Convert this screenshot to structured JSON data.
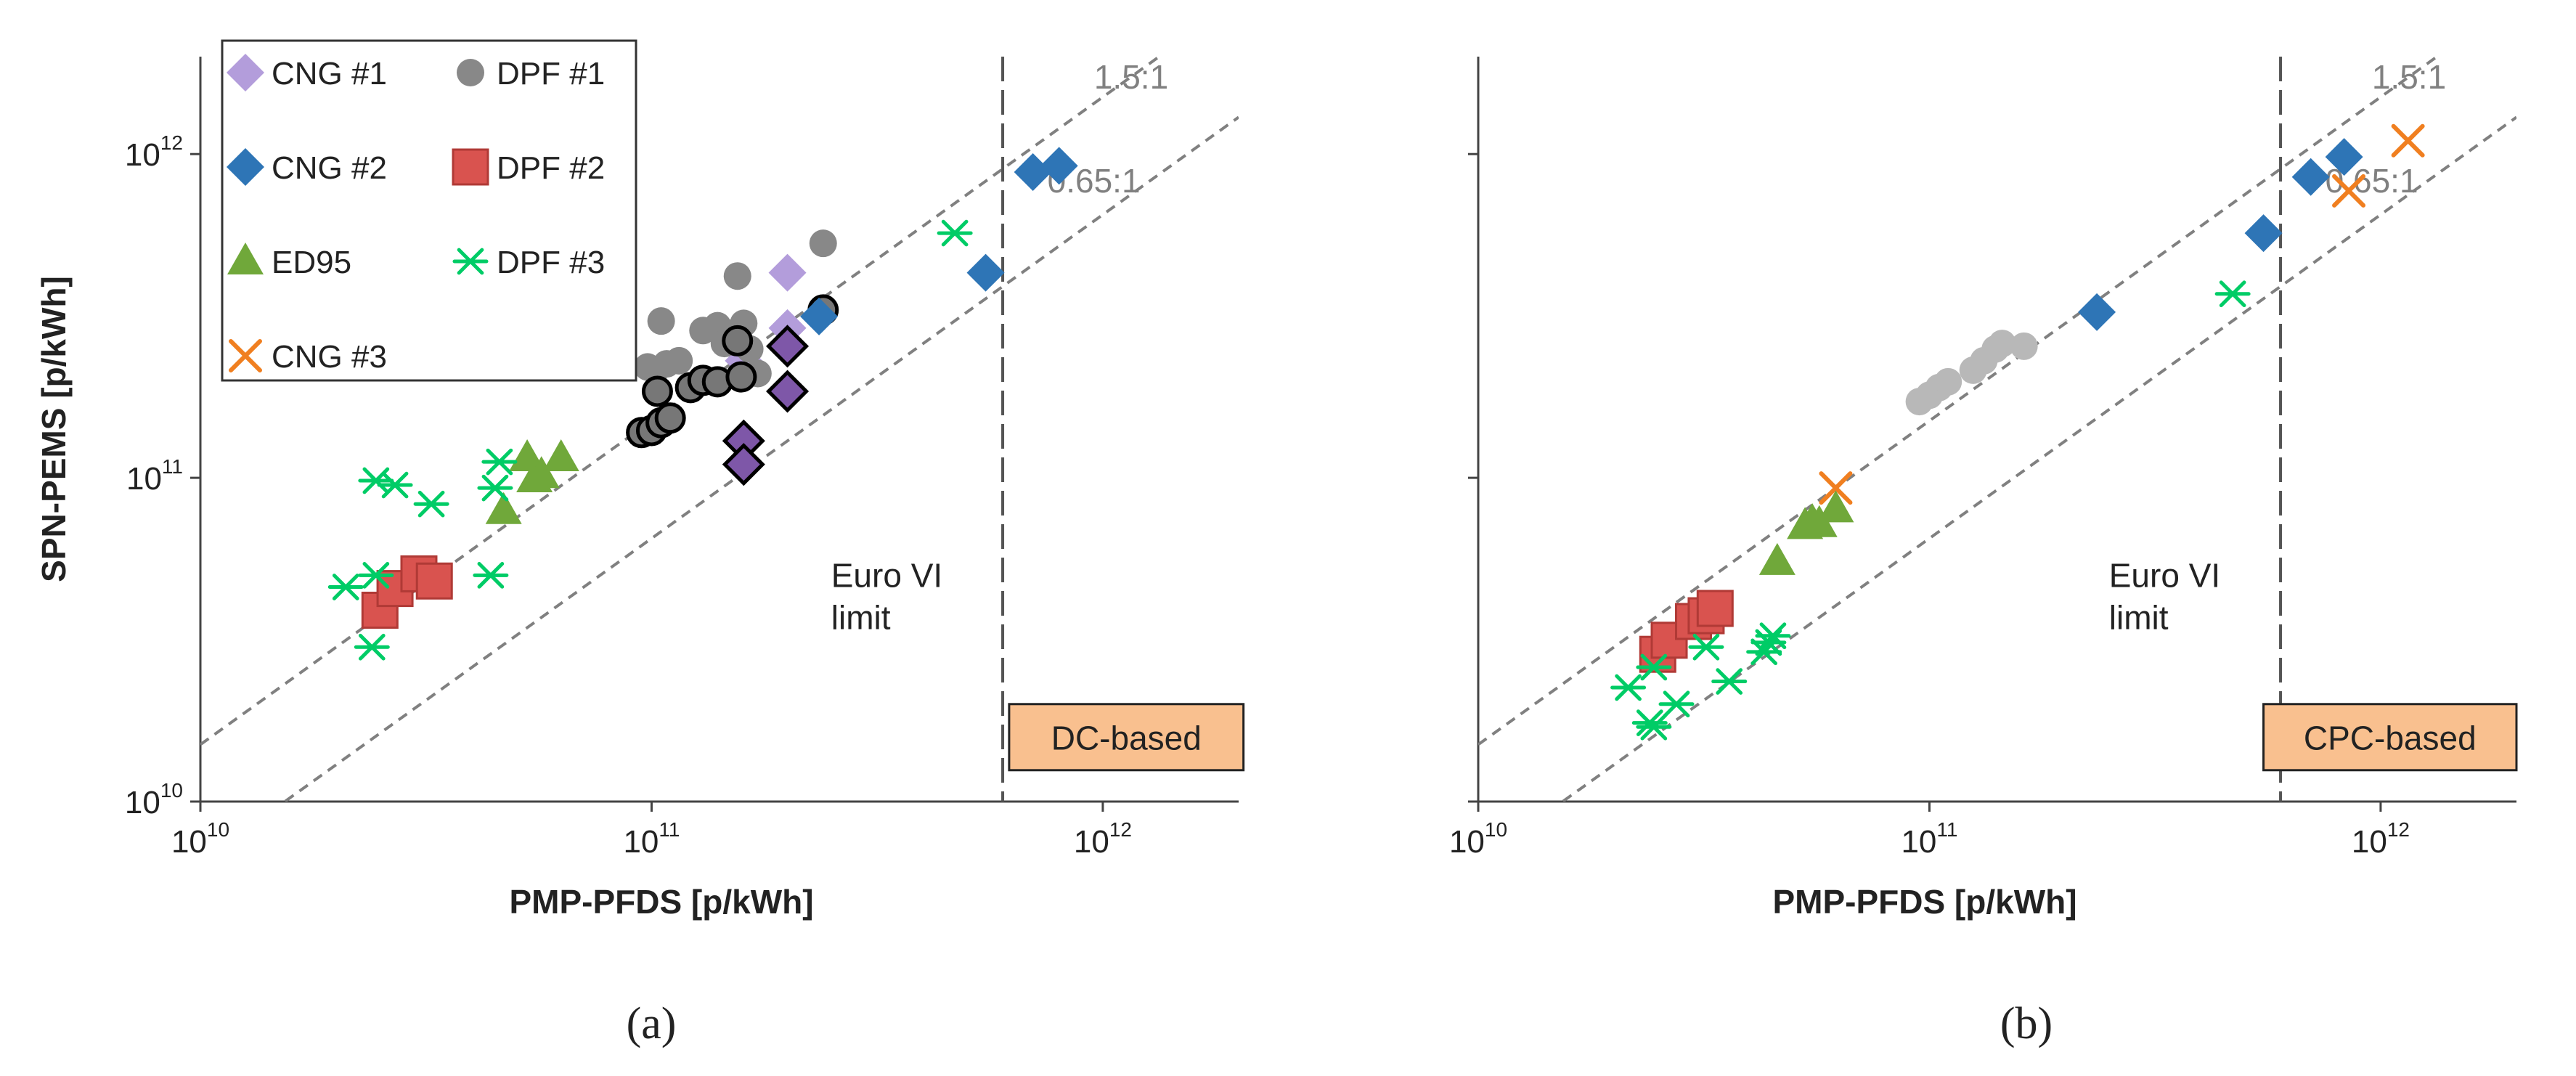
{
  "colors": {
    "cng1": "#b39ddb",
    "cng1_dark": "#7e57a8",
    "dpf1": "#888888",
    "dpf1_dark": "#777777",
    "cng2": "#2e75b6",
    "dpf2": "#d9534f",
    "dpf2_edge": "#b03a36",
    "ed95": "#70a83a",
    "dpf3": "#00cc66",
    "cng3": "#f07f20",
    "guide": "#808080",
    "box_fill": "#f9c08f",
    "axis": "#444444"
  },
  "chart_data": [
    {
      "type": "scatter",
      "panel_label": "(a)",
      "xlabel": "PMP-PFDS [p/kWh]",
      "ylabel": "SPN-PEMS [p/kWh]",
      "scale": "log",
      "xlim": [
        10000000000.0,
        2000000000000.0
      ],
      "ylim": [
        10000000000.0,
        2000000000000.0
      ],
      "x_ticks": [
        {
          "value": 10000000000.0,
          "base": "10",
          "exp": "10"
        },
        {
          "value": 100000000000.0,
          "base": "10",
          "exp": "11"
        },
        {
          "value": 1000000000000.0,
          "base": "10",
          "exp": "12"
        }
      ],
      "y_ticks": [
        {
          "value": 10000000000.0,
          "base": "10",
          "exp": "10"
        },
        {
          "value": 100000000000.0,
          "base": "10",
          "exp": "11"
        },
        {
          "value": 1000000000000.0,
          "base": "10",
          "exp": "12"
        }
      ],
      "ratio_lines": [
        {
          "label": "1.5:1",
          "ratio": 1.5,
          "label_anchor": [
            1950000000000.0,
            1100000000000.0
          ]
        },
        {
          "label": "0.65:1",
          "ratio": 0.65,
          "label_anchor": [
            700000000000.0,
            620000000000.0
          ]
        }
      ],
      "limit_line": {
        "x": 600000000000.0,
        "text_lines": [
          "Euro VI",
          "limit"
        ],
        "text_at": [
          250000000000.0,
          46000000000.0
        ]
      },
      "method_box": {
        "text": "DC-based",
        "from": [
          620000000000.0,
          12500000000.0
        ],
        "to": [
          2050000000000.0,
          20000000000.0
        ]
      },
      "legend": {
        "position": "top-left",
        "entries": [
          {
            "label": "CNG #1",
            "series": "CNG #1",
            "marker": "diamond"
          },
          {
            "label": "DPF #1",
            "series": "DPF #1",
            "marker": "circle"
          },
          {
            "label": "CNG #2",
            "series": "CNG #2",
            "marker": "diamond"
          },
          {
            "label": "DPF #2",
            "series": "DPF #2",
            "marker": "square"
          },
          {
            "label": "ED95",
            "series": "ED95",
            "marker": "triangle"
          },
          {
            "label": "DPF #3",
            "series": "DPF #3",
            "marker": "star"
          },
          {
            "label": "CNG #3",
            "series": "CNG #3",
            "marker": "cross"
          }
        ]
      },
      "series": [
        {
          "name": "CNG #1",
          "marker": "diamond",
          "color": "#b39ddb",
          "points": [
            [
              200000000000.0,
              430000000000.0
            ],
            [
              200000000000.0,
              290000000000.0
            ],
            [
              160000000000.0,
              230000000000.0
            ]
          ]
        },
        {
          "name": "CNG #1 (bordered)",
          "marker": "diamond",
          "color": "#7e57a8",
          "edge": "#000000",
          "points": [
            [
              200000000000.0,
              255000000000.0
            ],
            [
              200000000000.0,
              185000000000.0
            ],
            [
              160000000000.0,
              130000000000.0
            ],
            [
              160000000000.0,
              110000000000.0
            ]
          ]
        },
        {
          "name": "DPF #1",
          "marker": "circle",
          "color": "#888888",
          "points": [
            [
              240000000000.0,
              530000000000.0
            ],
            [
              155000000000.0,
              420000000000.0
            ],
            [
              105000000000.0,
              305000000000.0
            ],
            [
              98000000000.0,
              220000000000.0
            ],
            [
              102000000000.0,
              215000000000.0
            ],
            [
              108000000000.0,
              225000000000.0
            ],
            [
              115000000000.0,
              230000000000.0
            ],
            [
              130000000000.0,
              285000000000.0
            ],
            [
              140000000000.0,
              295000000000.0
            ],
            [
              150000000000.0,
              280000000000.0
            ],
            [
              160000000000.0,
              300000000000.0
            ],
            [
              145000000000.0,
              260000000000.0
            ],
            [
              165000000000.0,
              250000000000.0
            ],
            [
              172000000000.0,
              210000000000.0
            ]
          ]
        },
        {
          "name": "DPF #1 (bordered)",
          "marker": "circle",
          "color": "#777777",
          "edge": "#000000",
          "points": [
            [
              103000000000.0,
              185000000000.0
            ],
            [
              95000000000.0,
              138000000000.0
            ],
            [
              100000000000.0,
              140000000000.0
            ],
            [
              105000000000.0,
              148000000000.0
            ],
            [
              110000000000.0,
              153000000000.0
            ],
            [
              122000000000.0,
              190000000000.0
            ],
            [
              130000000000.0,
              200000000000.0
            ],
            [
              140000000000.0,
              198000000000.0
            ],
            [
              158000000000.0,
              205000000000.0
            ],
            [
              155000000000.0,
              265000000000.0
            ],
            [
              240000000000.0,
              330000000000.0
            ]
          ]
        },
        {
          "name": "CNG #2",
          "marker": "diamond",
          "color": "#2e75b6",
          "points": [
            [
              235000000000.0,
              315000000000.0
            ],
            [
              550000000000.0,
              430000000000.0
            ],
            [
              700000000000.0,
              880000000000.0
            ],
            [
              800000000000.0,
              920000000000.0
            ]
          ]
        },
        {
          "name": "DPF #2",
          "marker": "square",
          "color": "#d9534f",
          "edge": "#b03a36",
          "points": [
            [
              25000000000.0,
              39000000000.0
            ],
            [
              27000000000.0,
              45500000000.0
            ],
            [
              30500000000.0,
              50500000000.0
            ],
            [
              33000000000.0,
              48000000000.0
            ]
          ]
        },
        {
          "name": "ED95",
          "marker": "triangle",
          "color": "#70a83a",
          "points": [
            [
              47000000000.0,
              79000000000.0
            ],
            [
              53000000000.0,
              115000000000.0
            ],
            [
              55000000000.0,
              99000000000.0
            ],
            [
              57000000000.0,
              102000000000.0
            ],
            [
              63000000000.0,
              115000000000.0
            ]
          ]
        },
        {
          "name": "DPF #3",
          "marker": "star",
          "color": "#00cc66",
          "points": [
            [
              21000000000.0,
              46000000000.0
            ],
            [
              24000000000.0,
              30000000000.0
            ],
            [
              24500000000.0,
              50000000000.0
            ],
            [
              24500000000.0,
              98000000000.0
            ],
            [
              27000000000.0,
              95000000000.0
            ],
            [
              32500000000.0,
              83000000000.0
            ],
            [
              44000000000.0,
              50000000000.0
            ],
            [
              45000000000.0,
              93000000000.0
            ],
            [
              46000000000.0,
              112000000000.0
            ],
            [
              470000000000.0,
              570000000000.0
            ]
          ]
        }
      ]
    },
    {
      "type": "scatter",
      "panel_label": "(b)",
      "xlabel": "PMP-PFDS [p/kWh]",
      "ylabel": "",
      "scale": "log",
      "xlim": [
        10000000000.0,
        2000000000000.0
      ],
      "ylim": [
        10000000000.0,
        2000000000000.0
      ],
      "x_ticks": [
        {
          "value": 10000000000.0,
          "base": "10",
          "exp": "10"
        },
        {
          "value": 100000000000.0,
          "base": "10",
          "exp": "11"
        },
        {
          "value": 1000000000000.0,
          "base": "10",
          "exp": "12"
        }
      ],
      "y_ticks": [],
      "ratio_lines": [
        {
          "label": "1.5:1",
          "ratio": 1.5,
          "label_anchor": [
            1950000000000.0,
            1100000000000.0
          ]
        },
        {
          "label": "0.65:1",
          "ratio": 0.65,
          "label_anchor": [
            700000000000.0,
            620000000000.0
          ]
        }
      ],
      "limit_line": {
        "x": 600000000000.0,
        "text_lines": [
          "Euro VI",
          "limit"
        ],
        "text_at": [
          250000000000.0,
          46000000000.0
        ]
      },
      "method_box": {
        "text": "CPC-based",
        "from": [
          550000000000.0,
          12500000000.0
        ],
        "to": [
          2000000000000.0,
          20000000000.0
        ]
      },
      "series": [
        {
          "name": "DPF #1",
          "marker": "circle",
          "color": "#b8b8b8",
          "points": [
            [
              95000000000.0,
              172000000000.0
            ],
            [
              100000000000.0,
              180000000000.0
            ],
            [
              105000000000.0,
              190000000000.0
            ],
            [
              110000000000.0,
              198000000000.0
            ],
            [
              125000000000.0,
              215000000000.0
            ],
            [
              132000000000.0,
              230000000000.0
            ],
            [
              140000000000.0,
              250000000000.0
            ],
            [
              145000000000.0,
              260000000000.0
            ],
            [
              162000000000.0,
              255000000000.0
            ]
          ]
        },
        {
          "name": "CNG #2",
          "marker": "diamond",
          "color": "#2e75b6",
          "points": [
            [
              235000000000.0,
              325000000000.0
            ],
            [
              550000000000.0,
              570000000000.0
            ],
            [
              700000000000.0,
              850000000000.0
            ],
            [
              830000000000.0,
              980000000000.0
            ]
          ]
        },
        {
          "name": "CNG #3",
          "marker": "cross",
          "color": "#f07f20",
          "points": [
            [
              62000000000.0,
              93000000000.0
            ],
            [
              850000000000.0,
              770000000000.0
            ],
            [
              1150000000000.0,
              1100000000000.0
            ]
          ]
        },
        {
          "name": "ED95",
          "marker": "triangle",
          "color": "#70a83a",
          "points": [
            [
              46000000000.0,
              55000000000.0
            ],
            [
              53000000000.0,
              71000000000.0
            ],
            [
              55000000000.0,
              73000000000.0
            ],
            [
              57000000000.0,
              72000000000.0
            ],
            [
              62000000000.0,
              80000000000.0
            ]
          ]
        },
        {
          "name": "DPF #2",
          "marker": "square",
          "color": "#d9534f",
          "edge": "#b03a36",
          "points": [
            [
              25000000000.0,
              28500000000.0
            ],
            [
              26500000000.0,
              31500000000.0
            ],
            [
              30000000000.0,
              36000000000.0
            ],
            [
              32000000000.0,
              37500000000.0
            ],
            [
              33500000000.0,
              39500000000.0
            ]
          ]
        },
        {
          "name": "DPF #3",
          "marker": "star",
          "color": "#00cc66",
          "points": [
            [
              21500000000.0,
              22500000000.0
            ],
            [
              24000000000.0,
              17500000000.0
            ],
            [
              24500000000.0,
              17000000000.0
            ],
            [
              24500000000.0,
              26000000000.0
            ],
            [
              27500000000.0,
              20000000000.0
            ],
            [
              32000000000.0,
              30000000000.0
            ],
            [
              36000000000.0,
              23500000000.0
            ],
            [
              43000000000.0,
              29000000000.0
            ],
            [
              44000000000.0,
              31000000000.0
            ],
            [
              45000000000.0,
              32500000000.0
            ],
            [
              470000000000.0,
              370000000000.0
            ]
          ]
        }
      ]
    }
  ]
}
